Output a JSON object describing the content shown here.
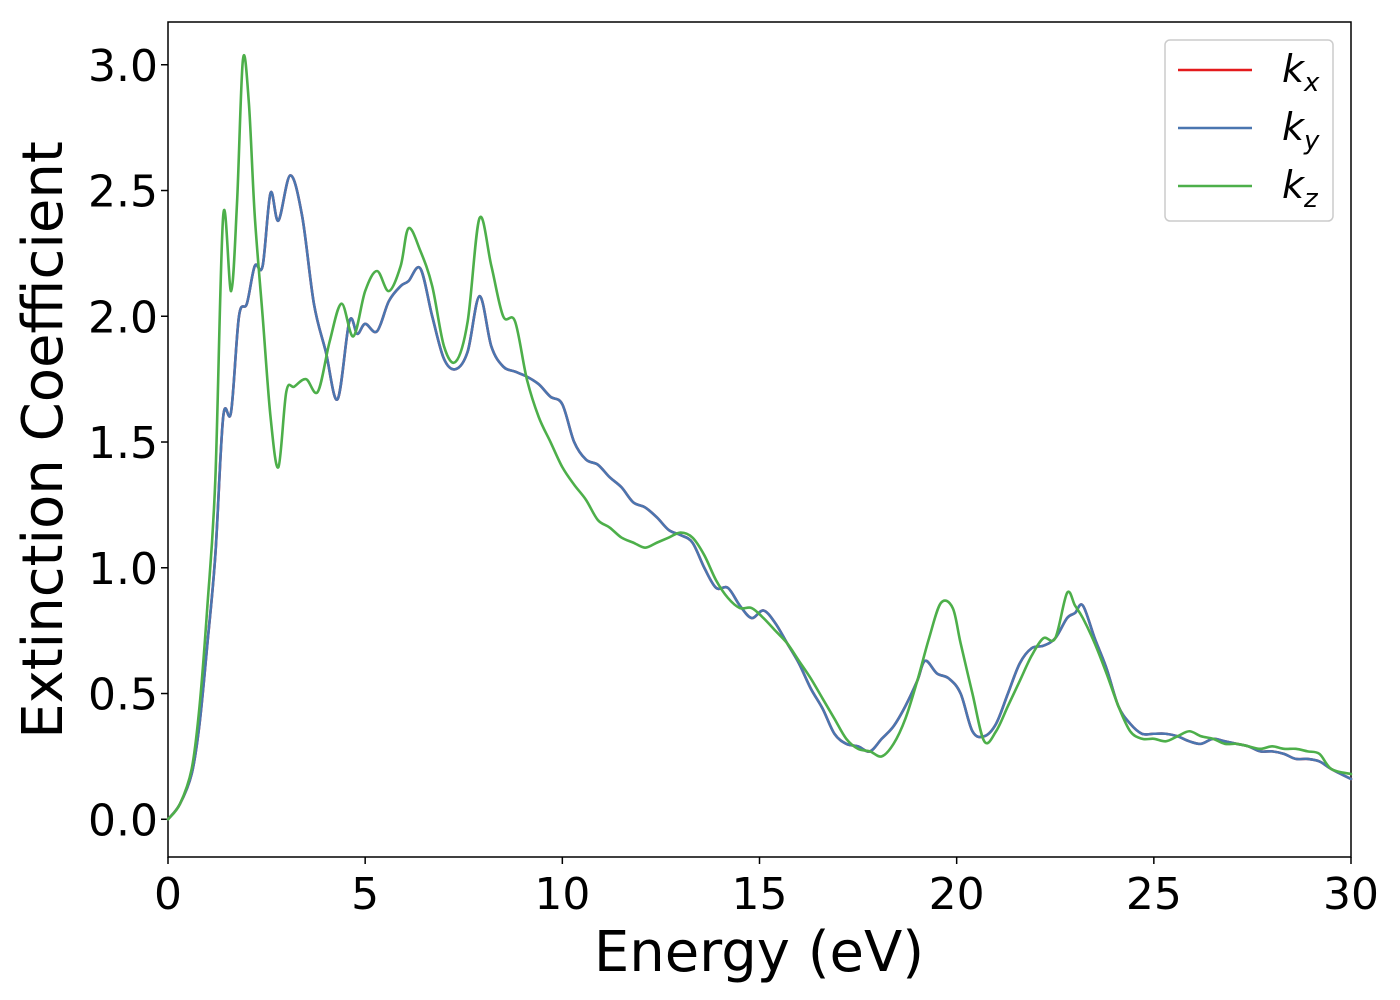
{
  "chart_data": {
    "type": "line",
    "xlabel": "Energy (eV)",
    "ylabel": "Extinction Coefficient",
    "xlim": [
      0,
      30
    ],
    "ylim": [
      -0.15,
      3.17
    ],
    "xticks": [
      0,
      5,
      10,
      15,
      20,
      25,
      30
    ],
    "xtick_labels": [
      "0",
      "5",
      "10",
      "15",
      "20",
      "25",
      "30"
    ],
    "yticks": [
      0.0,
      0.5,
      1.0,
      1.5,
      2.0,
      2.5,
      3.0
    ],
    "ytick_labels": [
      "0.0",
      "0.5",
      "1.0",
      "1.5",
      "2.0",
      "2.5",
      "3.0"
    ],
    "grid": false,
    "legend_position": "top-right",
    "series": [
      {
        "name": "k",
        "subscript": "x",
        "color": "#e41a1c",
        "x": [
          0,
          0.3,
          0.6,
          0.8,
          1.0,
          1.2,
          1.4,
          1.6,
          1.8,
          2.0,
          2.2,
          2.4,
          2.6,
          2.8,
          3.1,
          3.4,
          3.7,
          4.0,
          4.3,
          4.6,
          4.8,
          5.0,
          5.3,
          5.6,
          5.9,
          6.1,
          6.4,
          6.7,
          7.0,
          7.3,
          7.6,
          7.9,
          8.2,
          8.5,
          8.8,
          9.1,
          9.4,
          9.7,
          10.0,
          10.3,
          10.6,
          10.9,
          11.2,
          11.5,
          11.8,
          12.1,
          12.4,
          12.7,
          13.0,
          13.3,
          13.6,
          13.9,
          14.2,
          14.5,
          14.8,
          15.1,
          15.4,
          15.7,
          16.0,
          16.3,
          16.6,
          16.9,
          17.2,
          17.5,
          17.8,
          18.1,
          18.4,
          18.7,
          19.0,
          19.2,
          19.5,
          19.8,
          20.1,
          20.4,
          20.7,
          21.0,
          21.3,
          21.6,
          21.9,
          22.2,
          22.5,
          22.8,
          23.0,
          23.2,
          23.5,
          23.8,
          24.1,
          24.4,
          24.7,
          25.0,
          25.3,
          25.6,
          25.9,
          26.2,
          26.5,
          26.8,
          27.1,
          27.4,
          27.7,
          28.0,
          28.3,
          28.6,
          28.9,
          29.2,
          29.5,
          30.0
        ],
        "values": [
          0.0,
          0.06,
          0.18,
          0.38,
          0.7,
          1.05,
          1.6,
          1.62,
          2.0,
          2.05,
          2.2,
          2.2,
          2.49,
          2.38,
          2.56,
          2.4,
          2.05,
          1.86,
          1.67,
          1.98,
          1.93,
          1.97,
          1.94,
          2.06,
          2.12,
          2.14,
          2.19,
          2.0,
          1.83,
          1.79,
          1.86,
          2.08,
          1.88,
          1.8,
          1.78,
          1.76,
          1.73,
          1.68,
          1.65,
          1.5,
          1.43,
          1.41,
          1.36,
          1.32,
          1.26,
          1.24,
          1.2,
          1.15,
          1.13,
          1.1,
          1.0,
          0.92,
          0.92,
          0.85,
          0.8,
          0.83,
          0.78,
          0.7,
          0.62,
          0.52,
          0.44,
          0.34,
          0.3,
          0.29,
          0.27,
          0.32,
          0.37,
          0.45,
          0.55,
          0.63,
          0.58,
          0.56,
          0.5,
          0.35,
          0.33,
          0.38,
          0.5,
          0.62,
          0.68,
          0.69,
          0.72,
          0.8,
          0.82,
          0.85,
          0.72,
          0.6,
          0.45,
          0.38,
          0.34,
          0.34,
          0.34,
          0.33,
          0.31,
          0.3,
          0.32,
          0.31,
          0.3,
          0.29,
          0.27,
          0.27,
          0.26,
          0.24,
          0.24,
          0.23,
          0.2,
          0.16
        ]
      },
      {
        "name": "k",
        "subscript": "y",
        "color": "#4a76b0",
        "x": [
          0,
          0.3,
          0.6,
          0.8,
          1.0,
          1.2,
          1.4,
          1.6,
          1.8,
          2.0,
          2.2,
          2.4,
          2.6,
          2.8,
          3.1,
          3.4,
          3.7,
          4.0,
          4.3,
          4.6,
          4.8,
          5.0,
          5.3,
          5.6,
          5.9,
          6.1,
          6.4,
          6.7,
          7.0,
          7.3,
          7.6,
          7.9,
          8.2,
          8.5,
          8.8,
          9.1,
          9.4,
          9.7,
          10.0,
          10.3,
          10.6,
          10.9,
          11.2,
          11.5,
          11.8,
          12.1,
          12.4,
          12.7,
          13.0,
          13.3,
          13.6,
          13.9,
          14.2,
          14.5,
          14.8,
          15.1,
          15.4,
          15.7,
          16.0,
          16.3,
          16.6,
          16.9,
          17.2,
          17.5,
          17.8,
          18.1,
          18.4,
          18.7,
          19.0,
          19.2,
          19.5,
          19.8,
          20.1,
          20.4,
          20.7,
          21.0,
          21.3,
          21.6,
          21.9,
          22.2,
          22.5,
          22.8,
          23.0,
          23.2,
          23.5,
          23.8,
          24.1,
          24.4,
          24.7,
          25.0,
          25.3,
          25.6,
          25.9,
          26.2,
          26.5,
          26.8,
          27.1,
          27.4,
          27.7,
          28.0,
          28.3,
          28.6,
          28.9,
          29.2,
          29.5,
          30.0
        ],
        "values": [
          0.0,
          0.06,
          0.18,
          0.38,
          0.7,
          1.05,
          1.6,
          1.62,
          2.0,
          2.05,
          2.2,
          2.2,
          2.49,
          2.38,
          2.56,
          2.4,
          2.05,
          1.86,
          1.67,
          1.98,
          1.93,
          1.97,
          1.94,
          2.06,
          2.12,
          2.14,
          2.19,
          2.0,
          1.83,
          1.79,
          1.86,
          2.08,
          1.88,
          1.8,
          1.78,
          1.76,
          1.73,
          1.68,
          1.65,
          1.5,
          1.43,
          1.41,
          1.36,
          1.32,
          1.26,
          1.24,
          1.2,
          1.15,
          1.13,
          1.1,
          1.0,
          0.92,
          0.92,
          0.85,
          0.8,
          0.83,
          0.78,
          0.7,
          0.62,
          0.52,
          0.44,
          0.34,
          0.3,
          0.29,
          0.27,
          0.32,
          0.37,
          0.45,
          0.55,
          0.63,
          0.58,
          0.56,
          0.5,
          0.35,
          0.33,
          0.38,
          0.5,
          0.62,
          0.68,
          0.69,
          0.72,
          0.8,
          0.82,
          0.85,
          0.72,
          0.6,
          0.45,
          0.38,
          0.34,
          0.34,
          0.34,
          0.33,
          0.31,
          0.3,
          0.32,
          0.31,
          0.3,
          0.29,
          0.27,
          0.27,
          0.26,
          0.24,
          0.24,
          0.23,
          0.2,
          0.16
        ]
      },
      {
        "name": "k",
        "subscript": "z",
        "color": "#4daf4a",
        "x": [
          0,
          0.3,
          0.6,
          0.8,
          1.0,
          1.2,
          1.4,
          1.6,
          1.75,
          1.9,
          2.05,
          2.2,
          2.4,
          2.6,
          2.8,
          3.0,
          3.2,
          3.5,
          3.8,
          4.1,
          4.4,
          4.7,
          5.0,
          5.3,
          5.6,
          5.9,
          6.1,
          6.4,
          6.7,
          7.0,
          7.3,
          7.6,
          7.9,
          8.2,
          8.5,
          8.8,
          9.1,
          9.4,
          9.7,
          10.0,
          10.3,
          10.6,
          10.9,
          11.2,
          11.5,
          11.8,
          12.1,
          12.4,
          12.7,
          13.0,
          13.3,
          13.6,
          13.9,
          14.2,
          14.5,
          14.8,
          15.1,
          15.4,
          15.7,
          16.0,
          16.3,
          16.6,
          16.9,
          17.2,
          17.5,
          17.8,
          18.1,
          18.4,
          18.7,
          19.0,
          19.3,
          19.6,
          19.9,
          20.1,
          20.4,
          20.7,
          21.0,
          21.3,
          21.6,
          21.9,
          22.2,
          22.5,
          22.8,
          23.0,
          23.2,
          23.5,
          23.8,
          24.1,
          24.4,
          24.7,
          25.0,
          25.3,
          25.6,
          25.9,
          26.2,
          26.5,
          26.8,
          27.1,
          27.4,
          27.7,
          28.0,
          28.3,
          28.6,
          28.9,
          29.2,
          29.5,
          30.0
        ],
        "values": [
          0.0,
          0.06,
          0.2,
          0.45,
          0.85,
          1.35,
          2.4,
          2.1,
          2.45,
          3.02,
          2.85,
          2.4,
          2.0,
          1.6,
          1.4,
          1.7,
          1.72,
          1.75,
          1.7,
          1.9,
          2.05,
          1.92,
          2.1,
          2.18,
          2.1,
          2.2,
          2.35,
          2.26,
          2.12,
          1.88,
          1.82,
          1.98,
          2.39,
          2.2,
          2.0,
          1.98,
          1.75,
          1.6,
          1.5,
          1.4,
          1.33,
          1.27,
          1.19,
          1.16,
          1.12,
          1.1,
          1.08,
          1.1,
          1.12,
          1.14,
          1.12,
          1.05,
          0.95,
          0.88,
          0.84,
          0.84,
          0.8,
          0.75,
          0.7,
          0.63,
          0.56,
          0.48,
          0.4,
          0.32,
          0.28,
          0.27,
          0.25,
          0.3,
          0.4,
          0.55,
          0.72,
          0.86,
          0.84,
          0.7,
          0.5,
          0.31,
          0.35,
          0.45,
          0.55,
          0.65,
          0.72,
          0.72,
          0.9,
          0.85,
          0.8,
          0.7,
          0.58,
          0.45,
          0.35,
          0.32,
          0.32,
          0.31,
          0.33,
          0.35,
          0.33,
          0.32,
          0.3,
          0.3,
          0.29,
          0.28,
          0.29,
          0.28,
          0.28,
          0.27,
          0.26,
          0.2,
          0.18
        ]
      }
    ]
  }
}
